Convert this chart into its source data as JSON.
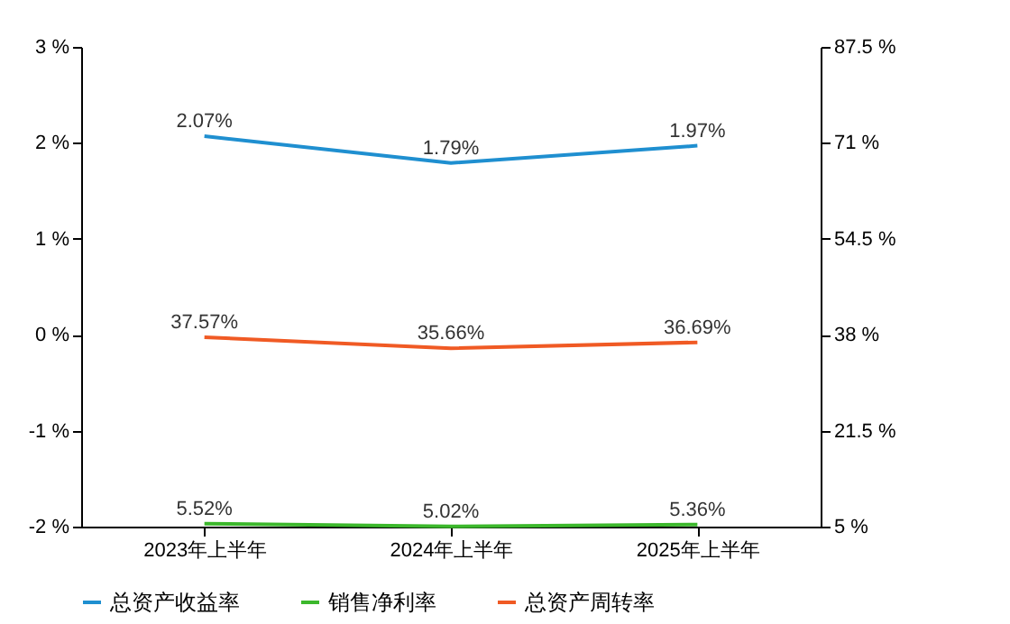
{
  "chart_data": {
    "type": "line",
    "categories": [
      "2023年上半年",
      "2024年上半年",
      "2025年上半年"
    ],
    "series": [
      {
        "name": "总资产收益率",
        "color": "#1f8fd0",
        "values": [
          2.07,
          1.79,
          1.97
        ],
        "value_labels": [
          "2.07%",
          "1.79%",
          "1.97%"
        ]
      },
      {
        "name": "销售净利率",
        "color": "#3cb82c",
        "values": [
          5.52,
          5.02,
          5.36
        ],
        "axis": "y2",
        "value_labels": [
          "5.52%",
          "5.02%",
          "5.36%"
        ]
      },
      {
        "name": "总资产周转率",
        "color": "#f05a24",
        "values": [
          37.57,
          35.66,
          36.69
        ],
        "axis": "y2",
        "value_labels": [
          "37.57%",
          "35.66%",
          "36.69%"
        ]
      }
    ],
    "ylim": [
      -2,
      3
    ],
    "yticks": [
      {
        "value": -2,
        "label": "-2 %"
      },
      {
        "value": -1,
        "label": "-1 %"
      },
      {
        "value": 0,
        "label": "0 %"
      },
      {
        "value": 1,
        "label": "1 %"
      },
      {
        "value": 2,
        "label": "2 %"
      },
      {
        "value": 3,
        "label": "3 %"
      }
    ],
    "y2lim": [
      5,
      87.5
    ],
    "y2ticks": [
      {
        "value": 5,
        "label": "5 %"
      },
      {
        "value": 21.5,
        "label": "21.5 %"
      },
      {
        "value": 38,
        "label": "38 %"
      },
      {
        "value": 54.5,
        "label": "54.5 %"
      },
      {
        "value": 71,
        "label": "71 %"
      },
      {
        "value": 87.5,
        "label": "87.5 %"
      }
    ],
    "grid": false,
    "legend": "bottom"
  }
}
